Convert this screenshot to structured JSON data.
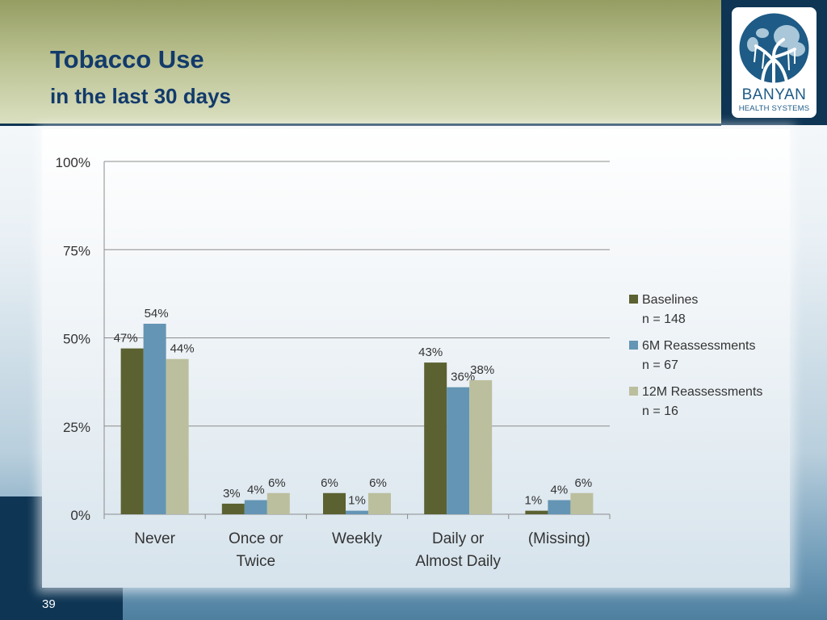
{
  "slide": {
    "title": "Tobacco Use",
    "subtitle": "in the last 30 days",
    "page_number": "39",
    "logo": {
      "name": "BANYAN",
      "tagline": "HEALTH SYSTEMS"
    }
  },
  "colors": {
    "baselines": "#5b6130",
    "six_month": "#6495b4",
    "twelve_month": "#bbbf9d",
    "title": "#123a6b",
    "dark_navy": "#0e3554"
  },
  "chart_data": {
    "type": "bar",
    "categories": [
      [
        "Never"
      ],
      [
        "Once or",
        "Twice"
      ],
      [
        "Weekly"
      ],
      [
        "Daily or",
        "Almost Daily"
      ],
      [
        "(Missing)"
      ]
    ],
    "series": [
      {
        "name": [
          "Baselines",
          "n = 148"
        ],
        "values": [
          47,
          3,
          6,
          43,
          1
        ],
        "labels": [
          "47%",
          "3%",
          "6%",
          "43%",
          "1%"
        ],
        "color": "#5b6130"
      },
      {
        "name": [
          "6M Reassessments",
          "n = 67"
        ],
        "values": [
          54,
          4,
          1,
          36,
          4
        ],
        "labels": [
          "54%",
          "4%",
          "1%",
          "36%",
          "4%"
        ],
        "color": "#6495b4"
      },
      {
        "name": [
          "12M Reassessments",
          "n = 16"
        ],
        "values": [
          44,
          6,
          6,
          38,
          6
        ],
        "labels": [
          "44%",
          "6%",
          "6%",
          "38%",
          "6%"
        ],
        "color": "#bbbf9d"
      }
    ],
    "yticks": [
      "0%",
      "25%",
      "50%",
      "75%",
      "100%"
    ],
    "ytick_values": [
      0,
      25,
      50,
      75,
      100
    ],
    "ylim": [
      0,
      100
    ],
    "grid": true,
    "legend_position": "right"
  }
}
